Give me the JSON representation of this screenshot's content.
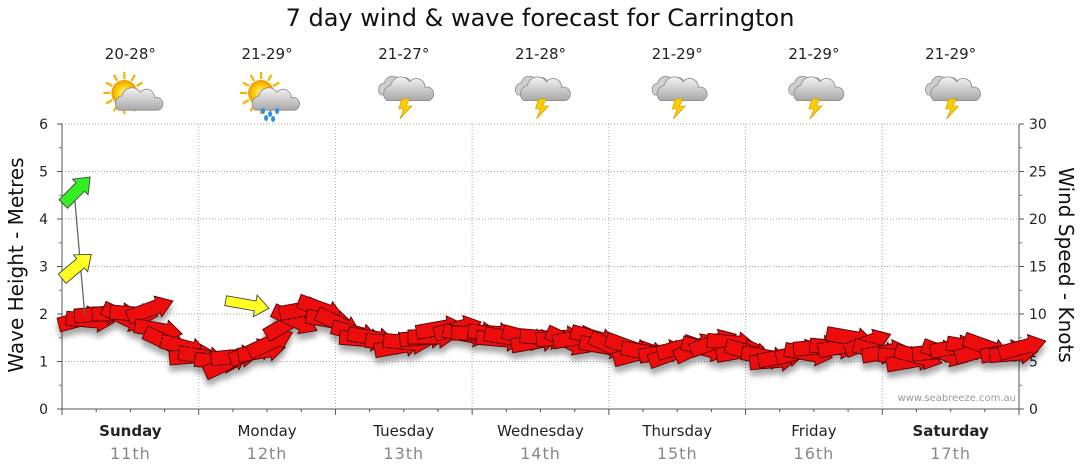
{
  "chart_data": {
    "type": "line",
    "title": "7 day wind & wave forecast for Carrington",
    "ylabel_left": "Wave Height - Metres",
    "ylabel_right": "Wind Speed - Knots",
    "ylim_left": [
      0,
      6
    ],
    "ylim_right": [
      0,
      30
    ],
    "left_ticks": [
      "0",
      "1",
      "2",
      "3",
      "4",
      "5",
      "6"
    ],
    "right_ticks": [
      "0",
      "5",
      "10",
      "15",
      "20",
      "25",
      "30"
    ],
    "grid": true,
    "watermark": "www.seabreeze.com.au",
    "days": [
      {
        "name": "Sunday",
        "date": "11th",
        "temp": "20-28°",
        "icon": "partly-cloudy",
        "bold": true
      },
      {
        "name": "Monday",
        "date": "12th",
        "temp": "21-29°",
        "icon": "partly-cloudy-showers",
        "bold": false
      },
      {
        "name": "Tuesday",
        "date": "13th",
        "temp": "21-27°",
        "icon": "thunderstorm",
        "bold": false
      },
      {
        "name": "Wednesday",
        "date": "14th",
        "temp": "21-28°",
        "icon": "thunderstorm",
        "bold": false
      },
      {
        "name": "Thursday",
        "date": "15th",
        "temp": "21-29°",
        "icon": "thunderstorm",
        "bold": false
      },
      {
        "name": "Friday",
        "date": "16th",
        "temp": "21-29°",
        "icon": "thunderstorm",
        "bold": false
      },
      {
        "name": "Saturday",
        "date": "17th",
        "temp": "21-29°",
        "icon": "thunderstorm",
        "bold": true
      }
    ],
    "series": [
      {
        "name": "Wind",
        "x_days": [
          0.0,
          0.12,
          0.25,
          0.38,
          0.5,
          0.62,
          0.75,
          0.88,
          1.0,
          1.12,
          1.25,
          1.38,
          1.5,
          1.62,
          1.75,
          1.88,
          2.0,
          2.12,
          2.25,
          2.38,
          2.5,
          2.62,
          2.75,
          2.88,
          3.0,
          3.12,
          3.25,
          3.38,
          3.5,
          3.62,
          3.75,
          3.88,
          4.0,
          4.12,
          4.25,
          4.38,
          4.5,
          4.62,
          4.75,
          4.88,
          5.0,
          5.12,
          5.25,
          5.38,
          5.5,
          5.62,
          5.75,
          5.88,
          6.0,
          6.12,
          6.25,
          6.38,
          6.5,
          6.62,
          6.75,
          6.88
        ],
        "values": [
          9.5,
          10.0,
          10.0,
          10.0,
          10.5,
          7.0,
          6.5,
          5.5,
          5.0,
          5.5,
          6.0,
          7.0,
          9.0,
          10.5,
          10.5,
          9.0,
          8.0,
          7.5,
          7.0,
          7.0,
          7.5,
          8.5,
          8.5,
          8.0,
          8.0,
          7.5,
          7.5,
          7.5,
          7.5,
          7.5,
          7.5,
          6.5,
          6.5,
          6.0,
          6.0,
          6.5,
          6.5,
          7.0,
          7.0,
          6.0,
          5.5,
          5.5,
          6.0,
          6.5,
          6.5,
          7.5,
          7.0,
          6.0,
          5.5,
          5.5,
          6.0,
          6.5,
          6.5,
          6.5,
          6.0,
          6.5
        ]
      },
      {
        "name": "Wave",
        "values": []
      }
    ],
    "highlighted_arrows": [
      {
        "x_day": 0.02,
        "value": 23.0,
        "color": "#33ee22"
      },
      {
        "x_day": 0.02,
        "value": 15.0,
        "color": "#ffff22"
      },
      {
        "x_day": 1.18,
        "value": 11.0,
        "color": "#ffff22"
      }
    ]
  }
}
